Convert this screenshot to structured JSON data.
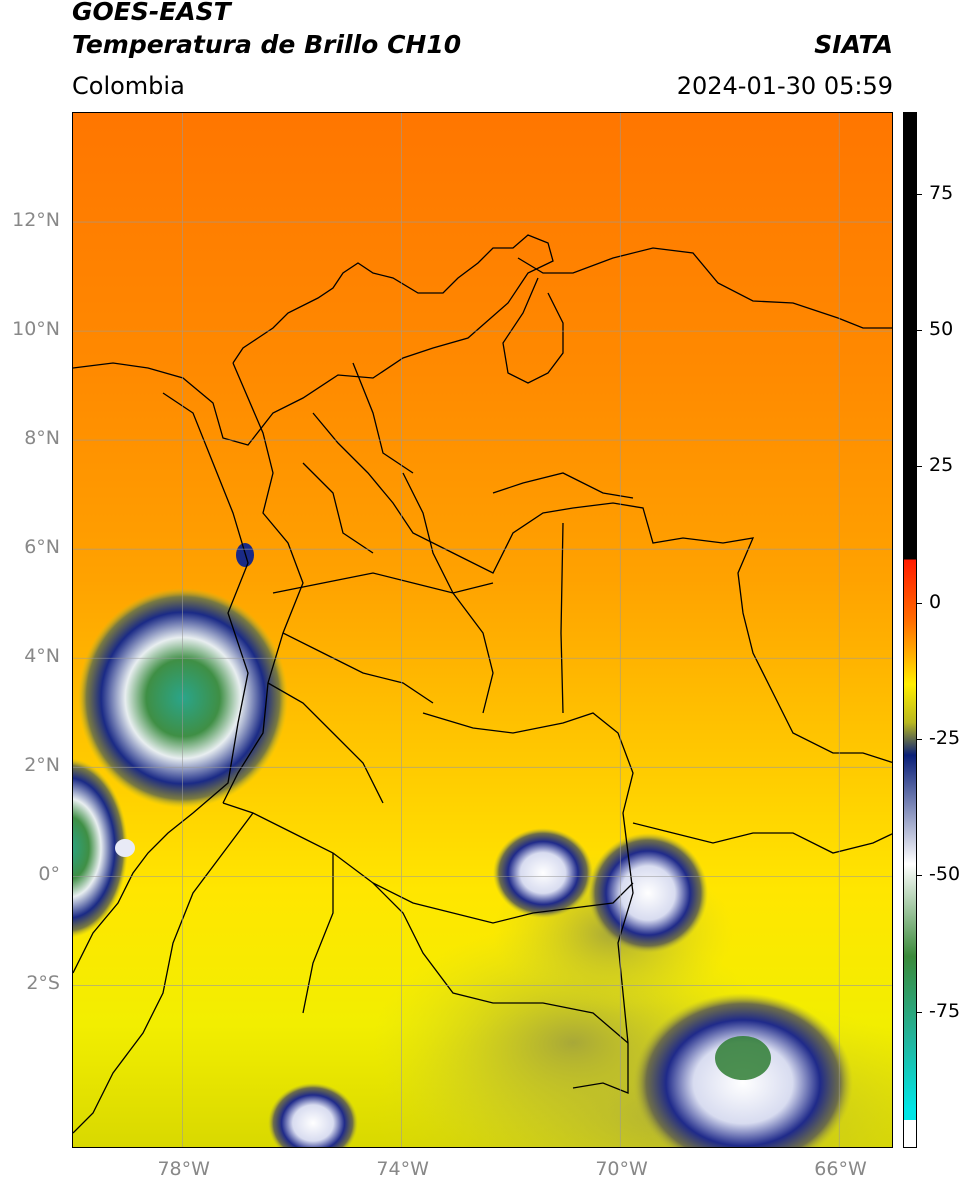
{
  "header": {
    "title_line1": "GOES-EAST",
    "title_line2": "Temperatura de Brillo CH10",
    "subtitle": "Colombia",
    "org": "SIATA",
    "timestamp": "2024-01-30 05:59"
  },
  "map": {
    "lon_range": [
      -80,
      -65
    ],
    "lat_range": [
      -5,
      14
    ],
    "lon_ticks": [
      {
        "value": -78,
        "label": "78°W"
      },
      {
        "value": -74,
        "label": "74°W"
      },
      {
        "value": -70,
        "label": "70°W"
      },
      {
        "value": -66,
        "label": "66°W"
      }
    ],
    "lat_ticks": [
      {
        "value": 12,
        "label": "12°N"
      },
      {
        "value": 10,
        "label": "10°N"
      },
      {
        "value": 8,
        "label": "8°N"
      },
      {
        "value": 6,
        "label": "6°N"
      },
      {
        "value": 4,
        "label": "4°N"
      },
      {
        "value": 2,
        "label": "2°N"
      },
      {
        "value": 0,
        "label": "0°"
      },
      {
        "value": -2,
        "label": "2°S"
      }
    ],
    "grid": true
  },
  "colorbar": {
    "range": [
      -100,
      90
    ],
    "ticks": [
      {
        "value": 75,
        "label": "75"
      },
      {
        "value": 50,
        "label": "50"
      },
      {
        "value": 25,
        "label": "25"
      },
      {
        "value": 0,
        "label": "0"
      },
      {
        "value": -25,
        "label": "-25"
      },
      {
        "value": -50,
        "label": "-50"
      },
      {
        "value": -75,
        "label": "-75"
      }
    ]
  },
  "colors": {
    "warm_top": "#ff6a00",
    "mid": "#ffb400",
    "yellow": "#ffee00",
    "olive": "#b8b820",
    "navy": "#0a1f78",
    "white": "#ffffff",
    "green": "#3a8a3a",
    "teal": "#23b49b",
    "cyan": "#00e5e5",
    "red": "#ff1a00",
    "black": "#000000"
  }
}
